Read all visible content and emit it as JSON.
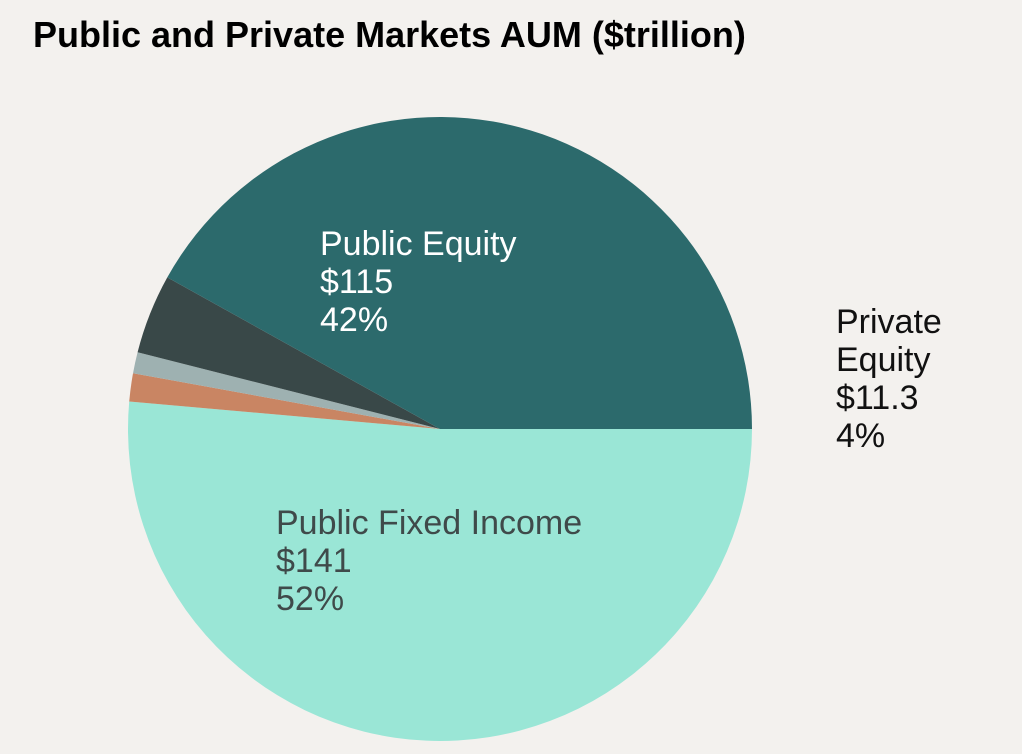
{
  "chart_data": {
    "type": "pie",
    "title": "Public and Private Markets AUM ($trillion)",
    "slices": [
      {
        "label": "Public Fixed Income",
        "value": 141,
        "value_label": "$141",
        "percent_label": "52%",
        "color": "#9ae6d6",
        "text_color": "#3f4a4a",
        "show_label": true
      },
      {
        "label": "Other (orange)",
        "value": 4.0,
        "value_label": "",
        "percent_label": "",
        "color": "#c98563",
        "show_label": false
      },
      {
        "label": "Other (gray)",
        "value": 3.0,
        "value_label": "",
        "percent_label": "",
        "color": "#9eb1b1",
        "show_label": false
      },
      {
        "label": "Private Equity",
        "value": 11.3,
        "value_label": "$11.3",
        "percent_label": "4%",
        "color": "#394848",
        "text_color": "#111111",
        "show_label": true
      },
      {
        "label": "Public Equity",
        "value": 115,
        "value_label": "$115",
        "percent_label": "42%",
        "color": "#2c6a6c",
        "text_color": "#ffffff",
        "show_label": true
      }
    ]
  }
}
